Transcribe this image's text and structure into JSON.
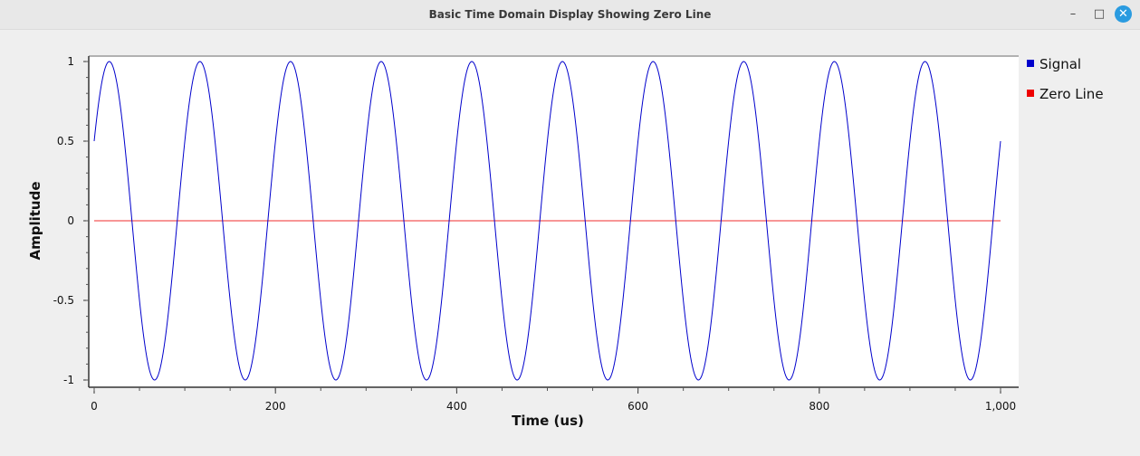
{
  "window": {
    "title": "Basic Time Domain Display Showing Zero Line",
    "minimize_icon": "minimize-icon",
    "maximize_icon": "maximize-icon",
    "close_icon": "close-icon",
    "minimize_glyph": "–",
    "maximize_glyph": "□",
    "close_glyph": "✕"
  },
  "chart_data": {
    "type": "line",
    "xlabel": "Time (us)",
    "ylabel": "Amplitude",
    "xlim": [
      0,
      1000
    ],
    "ylim": [
      -1,
      1
    ],
    "x_ticks": [
      0,
      200,
      400,
      600,
      800,
      1000
    ],
    "x_tick_labels": [
      "0",
      "200",
      "400",
      "600",
      "800",
      "1,000"
    ],
    "y_ticks": [
      1,
      0.5,
      0,
      -0.5,
      -1
    ],
    "y_tick_labels": [
      "1",
      "0.5",
      "0",
      "-0.5",
      "-1"
    ],
    "legend_position": "right",
    "series": [
      {
        "name": "Signal",
        "color": "#0000cc",
        "function": "sine",
        "amplitude": 1,
        "frequency_cycles_per_us": 0.01,
        "phase_deg": 30,
        "x_start": 0,
        "x_end": 1000,
        "points": [
          [
            0,
            0.5
          ],
          [
            17,
            1
          ],
          [
            67,
            -1
          ],
          [
            117,
            1
          ],
          [
            167,
            -1
          ],
          [
            217,
            1
          ],
          [
            267,
            -1
          ],
          [
            317,
            1
          ],
          [
            367,
            -1
          ],
          [
            417,
            1
          ],
          [
            467,
            -1
          ],
          [
            517,
            1
          ],
          [
            567,
            -1
          ],
          [
            617,
            1
          ],
          [
            667,
            -1
          ],
          [
            717,
            1
          ],
          [
            767,
            -1
          ],
          [
            817,
            1
          ],
          [
            867,
            -1
          ],
          [
            917,
            1
          ],
          [
            967,
            -1
          ],
          [
            1000,
            0.5
          ]
        ]
      },
      {
        "name": "Zero Line",
        "color": "#ee0000",
        "x": [
          0,
          1000
        ],
        "y": [
          0,
          0
        ]
      }
    ]
  }
}
